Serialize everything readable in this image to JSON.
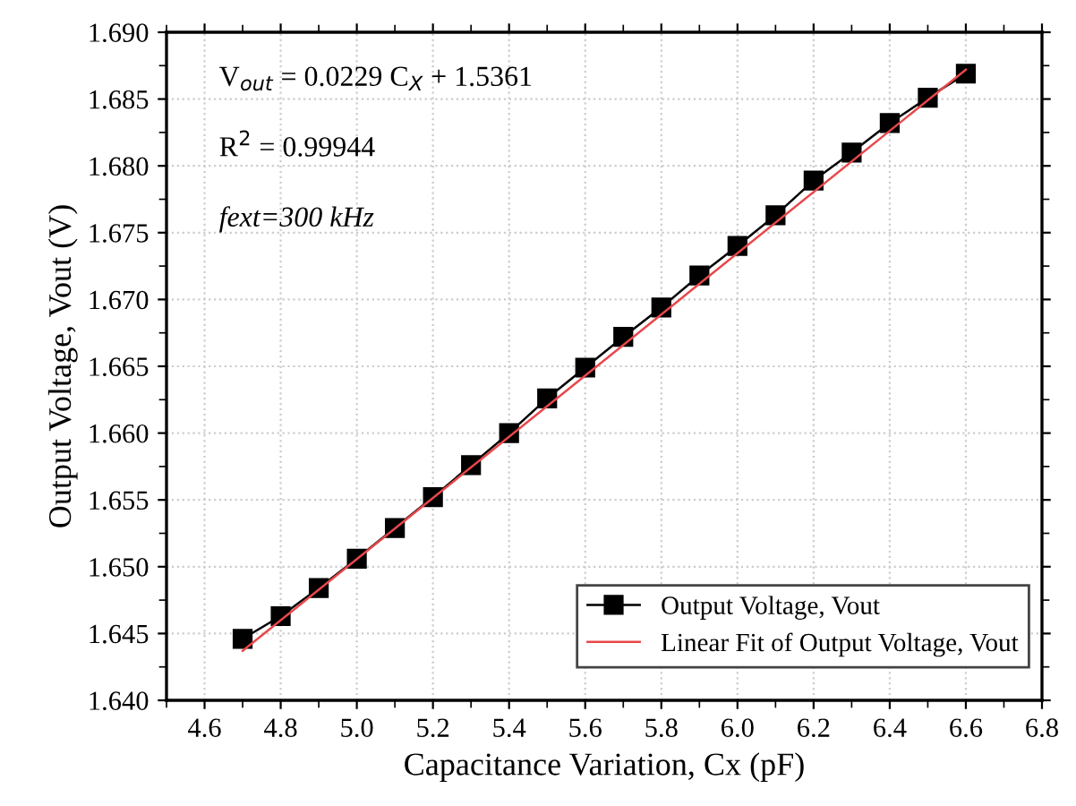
{
  "chart_data": {
    "type": "line",
    "xlabel": "Capacitance Variation, Cx (pF)",
    "ylabel": "Output Voltage, Vout (V)",
    "xlim": [
      4.5,
      6.8
    ],
    "xticks": [
      {
        "value": 4.6,
        "label": "4.6"
      },
      {
        "value": 4.8,
        "label": "4.8"
      },
      {
        "value": 5.0,
        "label": "5.0"
      },
      {
        "value": 5.2,
        "label": "5.2"
      },
      {
        "value": 5.4,
        "label": "5.4"
      },
      {
        "value": 5.6,
        "label": "5.6"
      },
      {
        "value": 5.8,
        "label": "5.8"
      },
      {
        "value": 6.0,
        "label": "6.0"
      },
      {
        "value": 6.2,
        "label": "6.2"
      },
      {
        "value": 6.4,
        "label": "6.4"
      },
      {
        "value": 6.6,
        "label": "6.6"
      },
      {
        "value": 6.8,
        "label": "6.8"
      }
    ],
    "ylim": [
      1.64,
      1.69
    ],
    "yticks": [
      {
        "value": 1.64,
        "label": "1.640"
      },
      {
        "value": 1.645,
        "label": "1.645"
      },
      {
        "value": 1.65,
        "label": "1.650"
      },
      {
        "value": 1.655,
        "label": "1.655"
      },
      {
        "value": 1.66,
        "label": "1.660"
      },
      {
        "value": 1.665,
        "label": "1.665"
      },
      {
        "value": 1.67,
        "label": "1.670"
      },
      {
        "value": 1.675,
        "label": "1.675"
      },
      {
        "value": 1.68,
        "label": "1.680"
      },
      {
        "value": 1.685,
        "label": "1.685"
      },
      {
        "value": 1.69,
        "label": "1.690"
      }
    ],
    "grid": true,
    "legend": "bottom right",
    "series": [
      {
        "name": "Output Voltage, Vout",
        "color": "#000000",
        "marker": "square",
        "x": [
          4.7,
          4.8,
          4.9,
          5.0,
          5.1,
          5.2,
          5.3,
          5.4,
          5.5,
          5.6,
          5.7,
          5.8,
          5.9,
          6.0,
          6.1,
          6.2,
          6.3,
          6.4,
          6.5,
          6.6
        ],
        "values": [
          1.6446,
          1.6463,
          1.6484,
          1.6506,
          1.6529,
          1.6552,
          1.6576,
          1.66,
          1.6626,
          1.6649,
          1.6672,
          1.6694,
          1.6718,
          1.674,
          1.6763,
          1.6789,
          1.681,
          1.6832,
          1.6851,
          1.6869
        ]
      },
      {
        "name": "Linear Fit of Output Voltage, Vout",
        "color": "#e8474a",
        "x": [
          4.7,
          6.6
        ],
        "values": [
          1.6437,
          1.6872
        ]
      }
    ],
    "annotations": [
      "V$_{out}$ = 0.0229 C$_{X}$ + 1.5361",
      "R$^{2}$ = 0.99944",
      "fext=300 kHz"
    ]
  }
}
